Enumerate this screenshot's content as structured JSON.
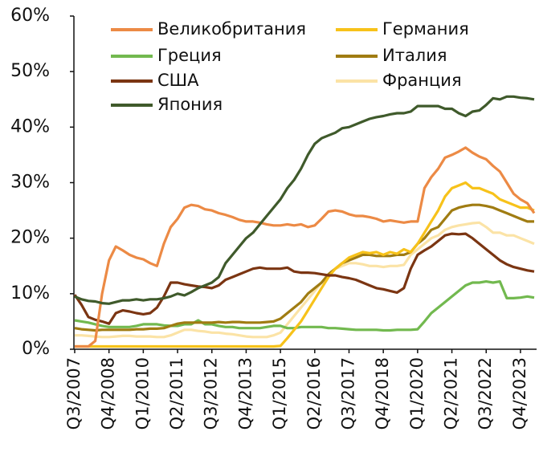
{
  "chart_data": {
    "type": "line",
    "categories": [
      "Q3/2007",
      null,
      null,
      null,
      null,
      "Q4/2008",
      null,
      null,
      null,
      null,
      "Q1/2010",
      null,
      null,
      null,
      null,
      "Q2/2011",
      null,
      null,
      null,
      null,
      "Q3/2012",
      null,
      null,
      null,
      null,
      "Q4/2013",
      null,
      null,
      null,
      null,
      "Q1/2015",
      null,
      null,
      null,
      null,
      "Q2/2016",
      null,
      null,
      null,
      null,
      "Q3/2017",
      null,
      null,
      null,
      null,
      "Q4/2018",
      null,
      null,
      null,
      null,
      "Q1/2020",
      null,
      null,
      null,
      null,
      "Q2/2021",
      null,
      null,
      null,
      null,
      "Q3/2022",
      null,
      null,
      null,
      null,
      "Q4/2023",
      null,
      null
    ],
    "ylim": [
      0,
      60
    ],
    "yticks": [
      {
        "value": 0,
        "label": "0%"
      },
      {
        "value": 10,
        "label": "10%"
      },
      {
        "value": 20,
        "label": "20%"
      },
      {
        "value": 30,
        "label": "30%"
      },
      {
        "value": 40,
        "label": "40%"
      },
      {
        "value": 50,
        "label": "50%"
      },
      {
        "value": 60,
        "label": "60%"
      }
    ],
    "grid": false,
    "legend": "top",
    "series": [
      {
        "name": "Великобритания",
        "color": "#ec8a45",
        "values": [
          0.5,
          0.5,
          0.5,
          1.5,
          10,
          16,
          18.5,
          17.8,
          17,
          16.5,
          16.2,
          15.5,
          15,
          19,
          22,
          23.5,
          25.5,
          26,
          25.8,
          25.2,
          25,
          24.5,
          24.2,
          23.8,
          23.3,
          23,
          23,
          22.8,
          22.5,
          22.3,
          22.3,
          22.5,
          22.3,
          22.5,
          22,
          22.3,
          23.5,
          24.8,
          25,
          24.8,
          24.3,
          24,
          24,
          23.8,
          23.5,
          23,
          23.2,
          23,
          22.8,
          23,
          23,
          29,
          31,
          32.5,
          34.5,
          35,
          35.6,
          36.3,
          35.4,
          34.7,
          34.2,
          33,
          32,
          30,
          28,
          27,
          26.3,
          24.5
        ]
      },
      {
        "name": "Германия",
        "color": "#f7c21a",
        "values": [
          0.5,
          0.5,
          0.5,
          0.5,
          0.5,
          0.5,
          0.5,
          0.5,
          0.5,
          0.5,
          0.5,
          0.5,
          0.5,
          0.5,
          0.5,
          0.5,
          0.5,
          0.5,
          0.5,
          0.5,
          0.5,
          0.5,
          0.5,
          0.5,
          0.5,
          0.5,
          0.5,
          0.5,
          0.5,
          0.5,
          0.6,
          2,
          3.5,
          5,
          7,
          9,
          11,
          13,
          14.5,
          15.5,
          16.5,
          17,
          17.5,
          17.3,
          17.5,
          17,
          17.5,
          17.2,
          18,
          17.5,
          19,
          21,
          23,
          25,
          27.5,
          29,
          29.5,
          30,
          29,
          29,
          28.5,
          28,
          27,
          26.5,
          26,
          25.5,
          25.5,
          25
        ]
      },
      {
        "name": "Греция",
        "color": "#72b94f",
        "values": [
          5.2,
          5,
          4.8,
          4.5,
          4.2,
          4,
          4,
          4,
          4,
          4.2,
          4.5,
          4.5,
          4.5,
          4.3,
          4.2,
          4.2,
          4.5,
          4.5,
          5.2,
          4.5,
          4.5,
          4.2,
          4,
          4,
          3.8,
          3.8,
          3.8,
          3.8,
          4,
          4.2,
          4.2,
          3.8,
          3.8,
          4,
          4,
          4,
          4,
          3.8,
          3.8,
          3.7,
          3.6,
          3.5,
          3.5,
          3.5,
          3.5,
          3.4,
          3.4,
          3.5,
          3.5,
          3.5,
          3.6,
          5,
          6.5,
          7.5,
          8.5,
          9.5,
          10.5,
          11.5,
          12,
          12,
          12.2,
          12,
          12.2,
          9.2,
          9.2,
          9.3,
          9.5,
          9.3
        ]
      },
      {
        "name": "Италия",
        "color": "#a07c12",
        "values": [
          3.8,
          3.6,
          3.5,
          3.4,
          3.5,
          3.5,
          3.5,
          3.5,
          3.5,
          3.6,
          3.6,
          3.7,
          3.7,
          3.8,
          4.2,
          4.6,
          4.8,
          4.8,
          4.8,
          4.8,
          4.8,
          4.9,
          4.8,
          4.9,
          4.9,
          4.8,
          4.8,
          4.8,
          4.9,
          5,
          5.5,
          6.5,
          7.5,
          8.5,
          10,
          11,
          12,
          13.5,
          14.5,
          15.5,
          16,
          16.5,
          17,
          17,
          16.8,
          16.8,
          16.8,
          17,
          17,
          17.5,
          19,
          20,
          21.5,
          22,
          23.5,
          25,
          25.5,
          25.8,
          26,
          26,
          25.8,
          25.5,
          25,
          24.5,
          24,
          23.5,
          23,
          23
        ]
      },
      {
        "name": "США",
        "color": "#7b3512",
        "values": [
          9.8,
          8,
          5.8,
          5.3,
          5,
          4.6,
          6.5,
          7,
          6.8,
          6.5,
          6.3,
          6.5,
          7.5,
          9.5,
          12,
          12,
          11.7,
          11.5,
          11.3,
          11.2,
          11,
          11.5,
          12.5,
          13,
          13.5,
          14,
          14.5,
          14.7,
          14.5,
          14.5,
          14.5,
          14.7,
          14,
          13.8,
          13.8,
          13.7,
          13.5,
          13.3,
          13.3,
          13,
          12.8,
          12.5,
          12,
          11.5,
          11,
          10.8,
          10.5,
          10.2,
          11,
          14.5,
          17,
          17.8,
          18.5,
          19.5,
          20.5,
          20.8,
          20.7,
          20.8,
          20,
          19,
          18,
          17,
          16,
          15.3,
          14.8,
          14.5,
          14.2,
          14
        ]
      },
      {
        "name": "Франция",
        "color": "#fbe3a6",
        "values": [
          2.5,
          2.5,
          2.4,
          2.3,
          2.2,
          2.2,
          2.3,
          2.4,
          2.4,
          2.3,
          2.3,
          2.3,
          2.2,
          2.2,
          2.5,
          3,
          3.5,
          3.5,
          3.3,
          3.2,
          3,
          3,
          2.8,
          2.7,
          2.5,
          2.3,
          2.2,
          2.2,
          2.2,
          2.5,
          3,
          4.5,
          6,
          7.5,
          9,
          10.5,
          12,
          13.5,
          14.5,
          15,
          15.5,
          15.5,
          15.3,
          15,
          15,
          14.8,
          15,
          15,
          15.2,
          17,
          18,
          19,
          20,
          20.5,
          21.5,
          22,
          22.3,
          22.5,
          22.7,
          22.8,
          22,
          21,
          21,
          20.5,
          20.5,
          20,
          19.5,
          19
        ]
      },
      {
        "name": "Япония",
        "color": "#3f5a2b",
        "values": [
          9.5,
          9,
          8.7,
          8.6,
          8.3,
          8.2,
          8.5,
          8.8,
          8.8,
          9,
          8.8,
          9,
          9,
          9.2,
          9.5,
          10,
          9.7,
          10.3,
          11,
          11.5,
          12,
          13,
          15.5,
          17,
          18.5,
          20,
          21,
          22.5,
          24,
          25.5,
          27,
          29,
          30.5,
          32.5,
          35,
          37,
          38,
          38.5,
          39,
          39.8,
          40,
          40.5,
          41,
          41.5,
          41.8,
          42,
          42.3,
          42.5,
          42.5,
          42.8,
          43.8,
          43.8,
          43.8,
          43.8,
          43.3,
          43.3,
          42.5,
          42,
          42.8,
          43,
          44,
          45.2,
          45,
          45.5,
          45.5,
          45.3,
          45.2,
          45
        ]
      }
    ]
  }
}
